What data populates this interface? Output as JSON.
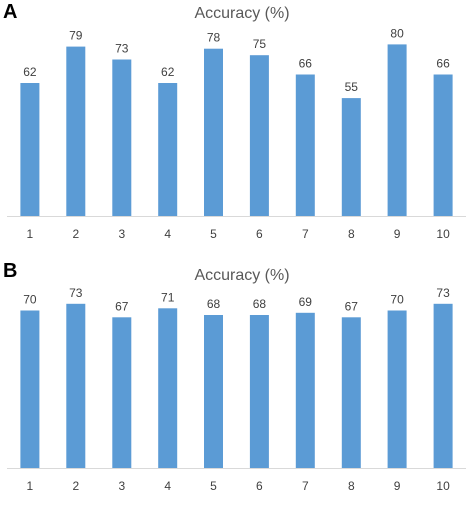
{
  "panels": [
    {
      "letter": "A",
      "chart_data": {
        "type": "bar",
        "title": "Accuracy (%)",
        "categories": [
          "1",
          "2",
          "3",
          "4",
          "5",
          "6",
          "7",
          "8",
          "9",
          "10"
        ],
        "values": [
          62,
          79,
          73,
          62,
          78,
          75,
          66,
          55,
          80,
          66
        ],
        "xlabel": "",
        "ylabel": "",
        "ylim": [
          0,
          90
        ],
        "grid": false,
        "color": "#5B9BD5",
        "data_labels": true
      }
    },
    {
      "letter": "B",
      "chart_data": {
        "type": "bar",
        "title": "Accuracy (%)",
        "categories": [
          "1",
          "2",
          "3",
          "4",
          "5",
          "6",
          "7",
          "8",
          "9",
          "10"
        ],
        "values": [
          70,
          73,
          67,
          71,
          68,
          68,
          69,
          67,
          70,
          73
        ],
        "xlabel": "",
        "ylabel": "",
        "ylim": [
          0,
          80
        ],
        "grid": false,
        "color": "#5B9BD5",
        "data_labels": true
      }
    }
  ]
}
